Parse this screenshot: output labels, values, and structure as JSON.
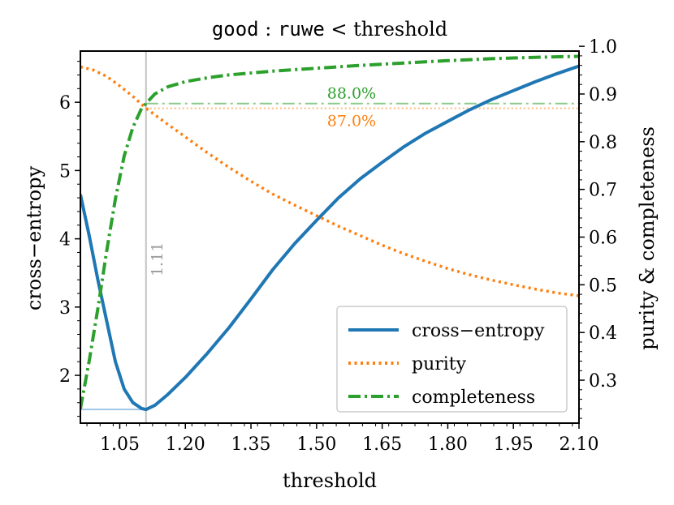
{
  "chart_data": {
    "type": "line",
    "title": {
      "parts": [
        {
          "text": "good",
          "mono": true
        },
        {
          "text": " : ",
          "mono": false
        },
        {
          "text": "ruwe",
          "mono": true
        },
        {
          "text": " < threshold",
          "mono": false
        }
      ]
    },
    "xlabel": "threshold",
    "ylabel_left": "cross−entropy",
    "ylabel_right": "purity & completeness",
    "xlim": [
      0.96,
      2.1
    ],
    "ylim_left": [
      1.3,
      6.75
    ],
    "ylim_right": [
      0.21,
      0.99
    ],
    "x_ticks": [
      1.05,
      1.2,
      1.35,
      1.5,
      1.65,
      1.8,
      1.95,
      2.1
    ],
    "x_tick_labels": [
      "1.05",
      "1.20",
      "1.35",
      "1.50",
      "1.65",
      "1.80",
      "1.95",
      "2.10"
    ],
    "y_left_ticks": [
      2,
      3,
      4,
      5,
      6
    ],
    "y_left_tick_labels": [
      "2",
      "3",
      "4",
      "5",
      "6"
    ],
    "y_right_ticks": [
      0.3,
      0.4,
      0.5,
      0.6,
      0.7,
      0.8,
      0.9,
      1.0
    ],
    "y_right_tick_labels": [
      "0.3",
      "0.4",
      "0.5",
      "0.6",
      "0.7",
      "0.8",
      "0.9",
      "1.0"
    ],
    "optimum": {
      "x": 1.11,
      "label": "1.11",
      "cross_entropy": 1.5
    },
    "reference_lines": [
      {
        "name": "completeness-at-optimum",
        "value": 0.88,
        "label": "88.0%",
        "color": "#2ca02c"
      },
      {
        "name": "purity-at-optimum",
        "value": 0.87,
        "label": "87.0%",
        "color": "#ff7f0e"
      }
    ],
    "series": [
      {
        "name": "cross−entropy",
        "axis": "left",
        "color": "#1f77b4",
        "style": "solid",
        "x": [
          0.96,
          0.98,
          1.0,
          1.02,
          1.04,
          1.06,
          1.08,
          1.1,
          1.11,
          1.13,
          1.16,
          1.2,
          1.25,
          1.3,
          1.35,
          1.4,
          1.45,
          1.5,
          1.55,
          1.6,
          1.65,
          1.7,
          1.75,
          1.8,
          1.85,
          1.9,
          1.95,
          2.0,
          2.05,
          2.1
        ],
        "y": [
          4.65,
          4.05,
          3.4,
          2.8,
          2.2,
          1.8,
          1.6,
          1.515,
          1.5,
          1.56,
          1.72,
          1.97,
          2.32,
          2.7,
          3.12,
          3.55,
          3.93,
          4.27,
          4.6,
          4.88,
          5.12,
          5.35,
          5.55,
          5.72,
          5.89,
          6.04,
          6.17,
          6.3,
          6.42,
          6.53
        ]
      },
      {
        "name": "purity",
        "axis": "right",
        "color": "#ff7f0e",
        "style": "dotted",
        "x": [
          0.96,
          0.99,
          1.02,
          1.05,
          1.08,
          1.11,
          1.15,
          1.2,
          1.25,
          1.3,
          1.35,
          1.4,
          1.45,
          1.5,
          1.55,
          1.6,
          1.65,
          1.7,
          1.75,
          1.8,
          1.85,
          1.9,
          1.95,
          2.0,
          2.05,
          2.1
        ],
        "y": [
          0.957,
          0.95,
          0.937,
          0.917,
          0.895,
          0.87,
          0.843,
          0.81,
          0.777,
          0.746,
          0.717,
          0.69,
          0.667,
          0.645,
          0.623,
          0.603,
          0.583,
          0.565,
          0.549,
          0.534,
          0.521,
          0.51,
          0.5,
          0.491,
          0.483,
          0.477
        ]
      },
      {
        "name": "completeness",
        "axis": "right",
        "color": "#2ca02c",
        "style": "dashdot",
        "x": [
          0.96,
          0.98,
          1.0,
          1.02,
          1.04,
          1.06,
          1.08,
          1.1,
          1.11,
          1.13,
          1.16,
          1.2,
          1.25,
          1.3,
          1.4,
          1.5,
          1.6,
          1.7,
          1.8,
          1.9,
          2.0,
          2.1
        ],
        "y": [
          0.24,
          0.34,
          0.45,
          0.57,
          0.68,
          0.77,
          0.83,
          0.87,
          0.88,
          0.9,
          0.915,
          0.926,
          0.934,
          0.94,
          0.948,
          0.954,
          0.96,
          0.965,
          0.97,
          0.974,
          0.977,
          0.979
        ]
      }
    ],
    "legend": {
      "location": "lower-right",
      "entries": [
        "cross−entropy",
        "purity",
        "completeness"
      ]
    }
  }
}
